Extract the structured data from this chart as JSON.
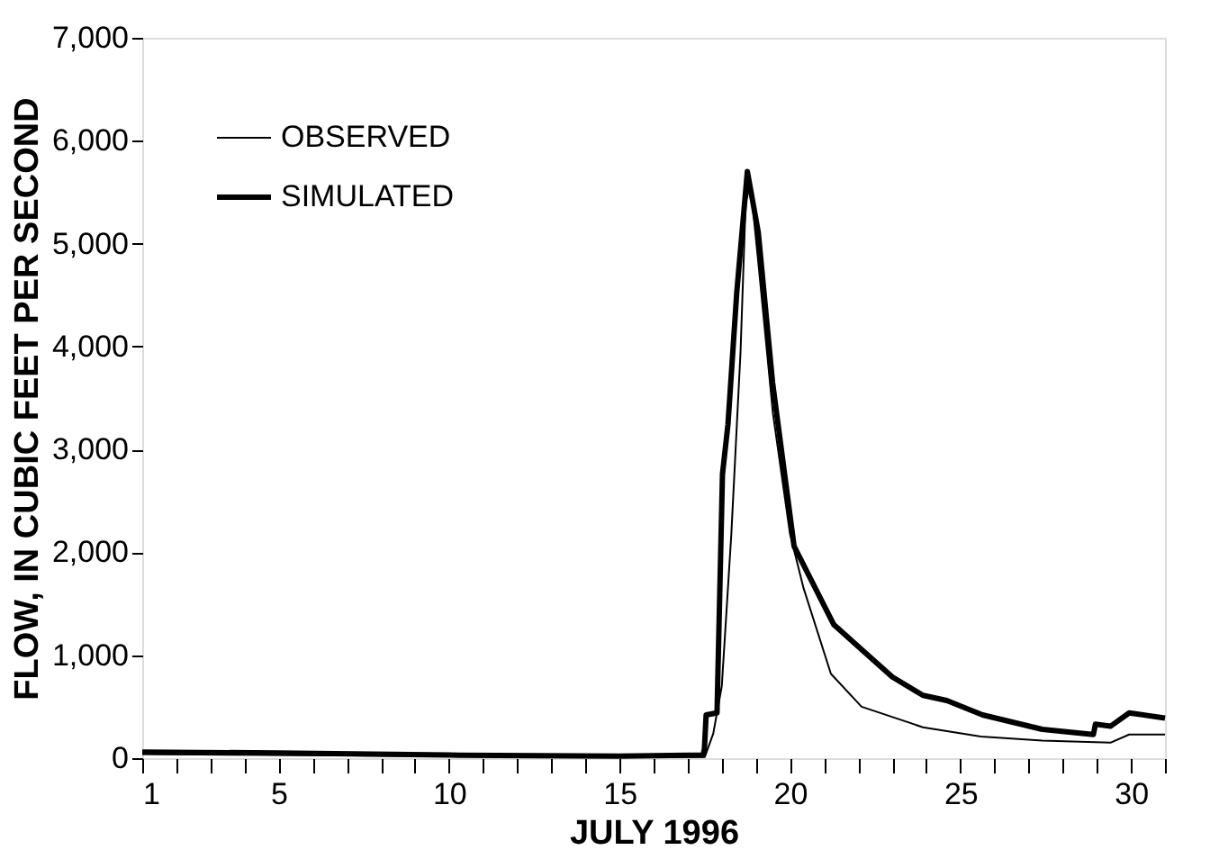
{
  "chart_data": {
    "type": "line",
    "xlabel": "JULY 1996",
    "ylabel": "FLOW, IN CUBIC FEET PER SECOND",
    "xlim": [
      1,
      31
    ],
    "ylim": [
      0,
      7000
    ],
    "xticks": [
      1,
      {
        "value": 2,
        "label": null
      },
      {
        "value": 3,
        "label": null
      },
      {
        "value": 4,
        "label": null
      },
      5,
      {
        "value": 6,
        "label": null
      },
      {
        "value": 7,
        "label": null
      },
      {
        "value": 8,
        "label": null
      },
      {
        "value": 9,
        "label": null
      },
      10,
      {
        "value": 11,
        "label": null
      },
      {
        "value": 12,
        "label": null
      },
      {
        "value": 13,
        "label": null
      },
      {
        "value": 14,
        "label": null
      },
      15,
      {
        "value": 16,
        "label": null
      },
      {
        "value": 17,
        "label": null
      },
      {
        "value": 18,
        "label": null
      },
      {
        "value": 19,
        "label": null
      },
      20,
      {
        "value": 21,
        "label": null
      },
      {
        "value": 22,
        "label": null
      },
      {
        "value": 23,
        "label": null
      },
      {
        "value": 24,
        "label": null
      },
      25,
      {
        "value": 26,
        "label": null
      },
      {
        "value": 27,
        "label": null
      },
      {
        "value": 28,
        "label": null
      },
      {
        "value": 29,
        "label": null
      },
      30,
      {
        "value": 31,
        "label": null
      }
    ],
    "yticks": [
      0,
      {
        "value": 1000,
        "label": "1,000"
      },
      {
        "value": 2000,
        "label": "2,000"
      },
      {
        "value": 3000,
        "label": "3,000"
      },
      {
        "value": 4000,
        "label": "4,000"
      },
      {
        "value": 5000,
        "label": "5,000"
      },
      {
        "value": 6000,
        "label": "6,000"
      },
      {
        "value": 7000,
        "label": "7,000"
      }
    ],
    "grid": false,
    "legend": "top left",
    "marker": "none",
    "line_style": "solid",
    "series": [
      {
        "name": "OBSERVED",
        "color": "#000000",
        "x": [
          1,
          5,
          10,
          15,
          17.5,
          17.75,
          18.0,
          18.28,
          18.55,
          18.7,
          18.84,
          19.07,
          19.5,
          20.0,
          20.4,
          21.2,
          22.1,
          23.9,
          25.6,
          27.4,
          29.4,
          29.95,
          31
        ],
        "values": [
          40,
          30,
          20,
          10,
          10,
          240,
          700,
          2180,
          3950,
          5400,
          5580,
          4820,
          3350,
          2180,
          1650,
          820,
          500,
          300,
          210,
          170,
          150,
          230,
          230
        ]
      },
      {
        "name": "SIMULATED",
        "color": "#000000",
        "x": [
          1,
          5,
          10,
          15,
          17.45,
          17.49,
          17.54,
          17.86,
          18.02,
          18.18,
          18.44,
          18.75,
          19.07,
          19.49,
          20.12,
          21.28,
          22.12,
          23.0,
          23.9,
          24.6,
          25.65,
          27.4,
          28.9,
          28.96,
          29.4,
          29.95,
          31
        ],
        "values": [
          60,
          50,
          30,
          20,
          30,
          90,
          420,
          440,
          2760,
          3240,
          4530,
          5700,
          5110,
          3650,
          2060,
          1300,
          1050,
          790,
          610,
          560,
          420,
          280,
          230,
          330,
          310,
          440,
          390
        ]
      }
    ]
  }
}
